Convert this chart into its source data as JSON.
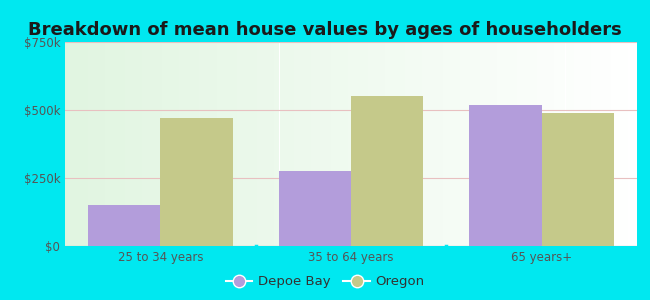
{
  "title": "Breakdown of mean house values by ages of householders",
  "categories": [
    "25 to 34 years",
    "35 to 64 years",
    "65 years+"
  ],
  "depoe_bay": [
    150000,
    275000,
    520000
  ],
  "oregon": [
    470000,
    550000,
    490000
  ],
  "depoe_bay_color": "#b39ddb",
  "oregon_color": "#c5c98a",
  "background_outer": "#00e8f0",
  "ylim": [
    0,
    750000
  ],
  "yticks": [
    0,
    250000,
    500000,
    750000
  ],
  "ytick_labels": [
    "$0",
    "$250k",
    "$500k",
    "$750k"
  ],
  "legend_labels": [
    "Depoe Bay",
    "Oregon"
  ],
  "bar_width": 0.38,
  "title_fontsize": 13,
  "tick_fontsize": 8.5,
  "legend_fontsize": 9.5
}
